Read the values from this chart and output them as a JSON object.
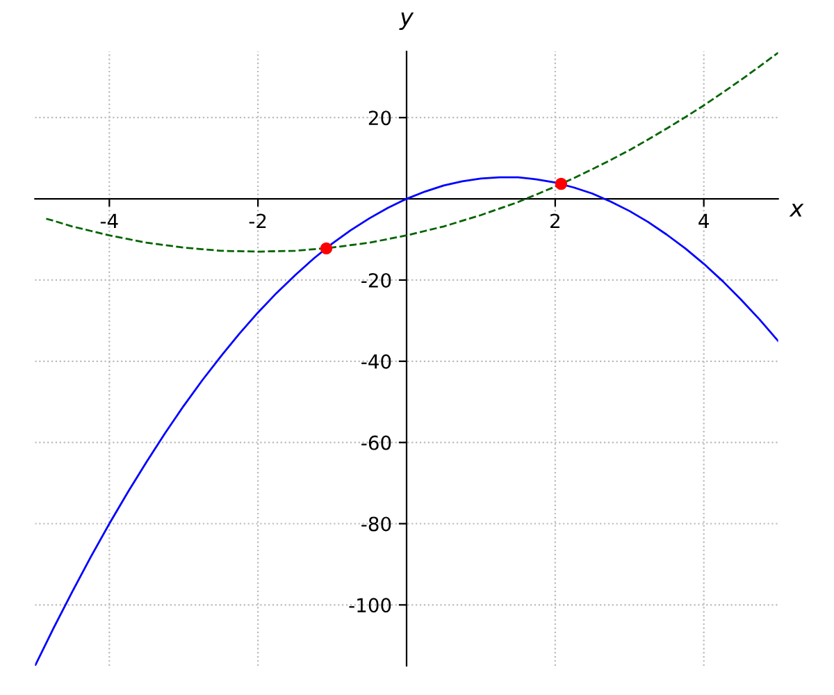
{
  "chart_data": {
    "type": "line",
    "xlabel": "x",
    "ylabel": "y",
    "xlim": [
      -5,
      5
    ],
    "ylim": [
      -115,
      36.3
    ],
    "xticks": [
      -4,
      -2,
      2,
      4
    ],
    "yticks": [
      -100,
      -80,
      -60,
      -40,
      -20,
      20
    ],
    "grid": true,
    "series": [
      {
        "color": "#0000ff",
        "line_style": "solid",
        "marker": "none",
        "x": [
          -5,
          -4.75,
          -4.5,
          -4.25,
          -4,
          -3.75,
          -3.5,
          -3.25,
          -3,
          -2.75,
          -2.5,
          -2.25,
          -2,
          -1.75,
          -1.5,
          -1.25,
          -1,
          -0.75,
          -0.5,
          -0.25,
          0,
          0.25,
          0.5,
          0.75,
          1,
          1.25,
          1.5,
          1.75,
          2,
          2.25,
          2.5,
          2.75,
          3,
          3.25,
          3.5,
          3.75,
          4,
          4.25,
          4.5,
          4.75,
          5
        ],
        "values": [
          -115,
          -105.7,
          -96.8,
          -88.2,
          -80,
          -72.2,
          -64.8,
          -57.7,
          -51,
          -44.7,
          -38.8,
          -33.2,
          -28,
          -23.2,
          -18.8,
          -14.7,
          -11,
          -7.7,
          -4.8,
          -2.2,
          0,
          1.8,
          3.3,
          4.3,
          5,
          5.3,
          5.3,
          4.8,
          4,
          2.8,
          1.3,
          -0.7,
          -3,
          -5.7,
          -8.8,
          -12.2,
          -16,
          -20.2,
          -24.8,
          -29.7,
          -35
        ]
      },
      {
        "color": "#006400",
        "line_style": "dashed",
        "marker": "none",
        "x": [
          -4.85,
          -4.75,
          -4.5,
          -4.25,
          -4,
          -3.75,
          -3.5,
          -3.25,
          -3,
          -2.75,
          -2.5,
          -2.25,
          -2,
          -1.75,
          -1.5,
          -1.25,
          -1,
          -0.75,
          -0.5,
          -0.25,
          0,
          0.25,
          0.5,
          0.75,
          1,
          1.25,
          1.5,
          1.75,
          2,
          2.25,
          2.5,
          2.75,
          3,
          3.25,
          3.5,
          3.75,
          4,
          4.25,
          4.5,
          4.75,
          5
        ],
        "values": [
          -4.9,
          -5.4,
          -6.8,
          -7.9,
          -9,
          -9.9,
          -10.8,
          -11.4,
          -12,
          -12.4,
          -12.8,
          -12.9,
          -13,
          -12.9,
          -12.8,
          -12.4,
          -12,
          -11.4,
          -10.8,
          -9.9,
          -9,
          -7.9,
          -6.8,
          -5.4,
          -4,
          -2.4,
          -0.8,
          1.1,
          3,
          5.1,
          7.3,
          9.6,
          12,
          14.6,
          17.3,
          20.1,
          23,
          26.1,
          29.3,
          32.6,
          36
        ]
      },
      {
        "type": "scatter",
        "color": "#ff0000",
        "marker": "circle",
        "x": [
          -1.08,
          2.08
        ],
        "values": [
          -12.2,
          3.7
        ]
      }
    ]
  }
}
